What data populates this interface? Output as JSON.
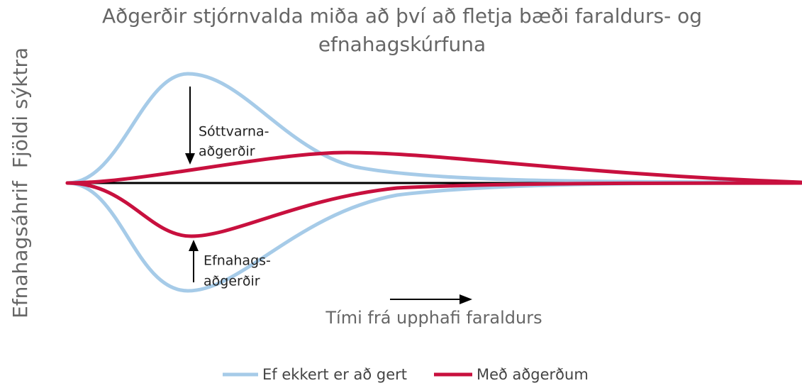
{
  "title": [
    "Aðgerðir stjórnvalda miða að því að fletja bæði faraldurs- og",
    "efnahagskúrfuna"
  ],
  "y_labels": {
    "top": "Fjöldi sýktra",
    "bottom": "Efnahagsáhrif"
  },
  "annotations": {
    "upper": [
      "Sóttvarna-",
      "aðgerðir"
    ],
    "lower": [
      "Efnahags-",
      "aðgerðir"
    ]
  },
  "x_label": "Tími frá upphafi faraldurs",
  "legend": [
    {
      "name": "Ef ekkert er að gert",
      "color": "#a6cbe8"
    },
    {
      "name": "Með aðgerðum",
      "color": "#c8103e"
    }
  ]
}
